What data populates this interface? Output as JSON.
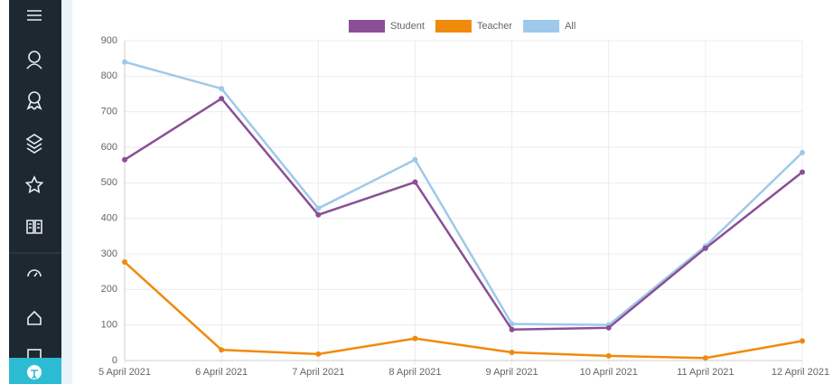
{
  "chart_data": {
    "type": "line",
    "categories": [
      "5 April 2021",
      "6 April 2021",
      "7 April 2021",
      "8 April 2021",
      "9 April 2021",
      "10 April 2021",
      "11 April 2021",
      "12 April 2021"
    ],
    "series": [
      {
        "name": "Student",
        "color": "#8b4f96",
        "values": [
          565,
          737,
          410,
          502,
          87,
          92,
          316,
          530
        ]
      },
      {
        "name": "Teacher",
        "color": "#f08a0b",
        "values": [
          277,
          30,
          18,
          62,
          23,
          13,
          7,
          55
        ]
      },
      {
        "name": "All",
        "color": "#9ec9ea",
        "values": [
          840,
          765,
          428,
          565,
          103,
          100,
          322,
          585
        ]
      }
    ],
    "ylim": [
      0,
      900
    ],
    "yticks": [
      0,
      100,
      200,
      300,
      400,
      500,
      600,
      700,
      800,
      900
    ],
    "grid": true,
    "legend": "top"
  }
}
